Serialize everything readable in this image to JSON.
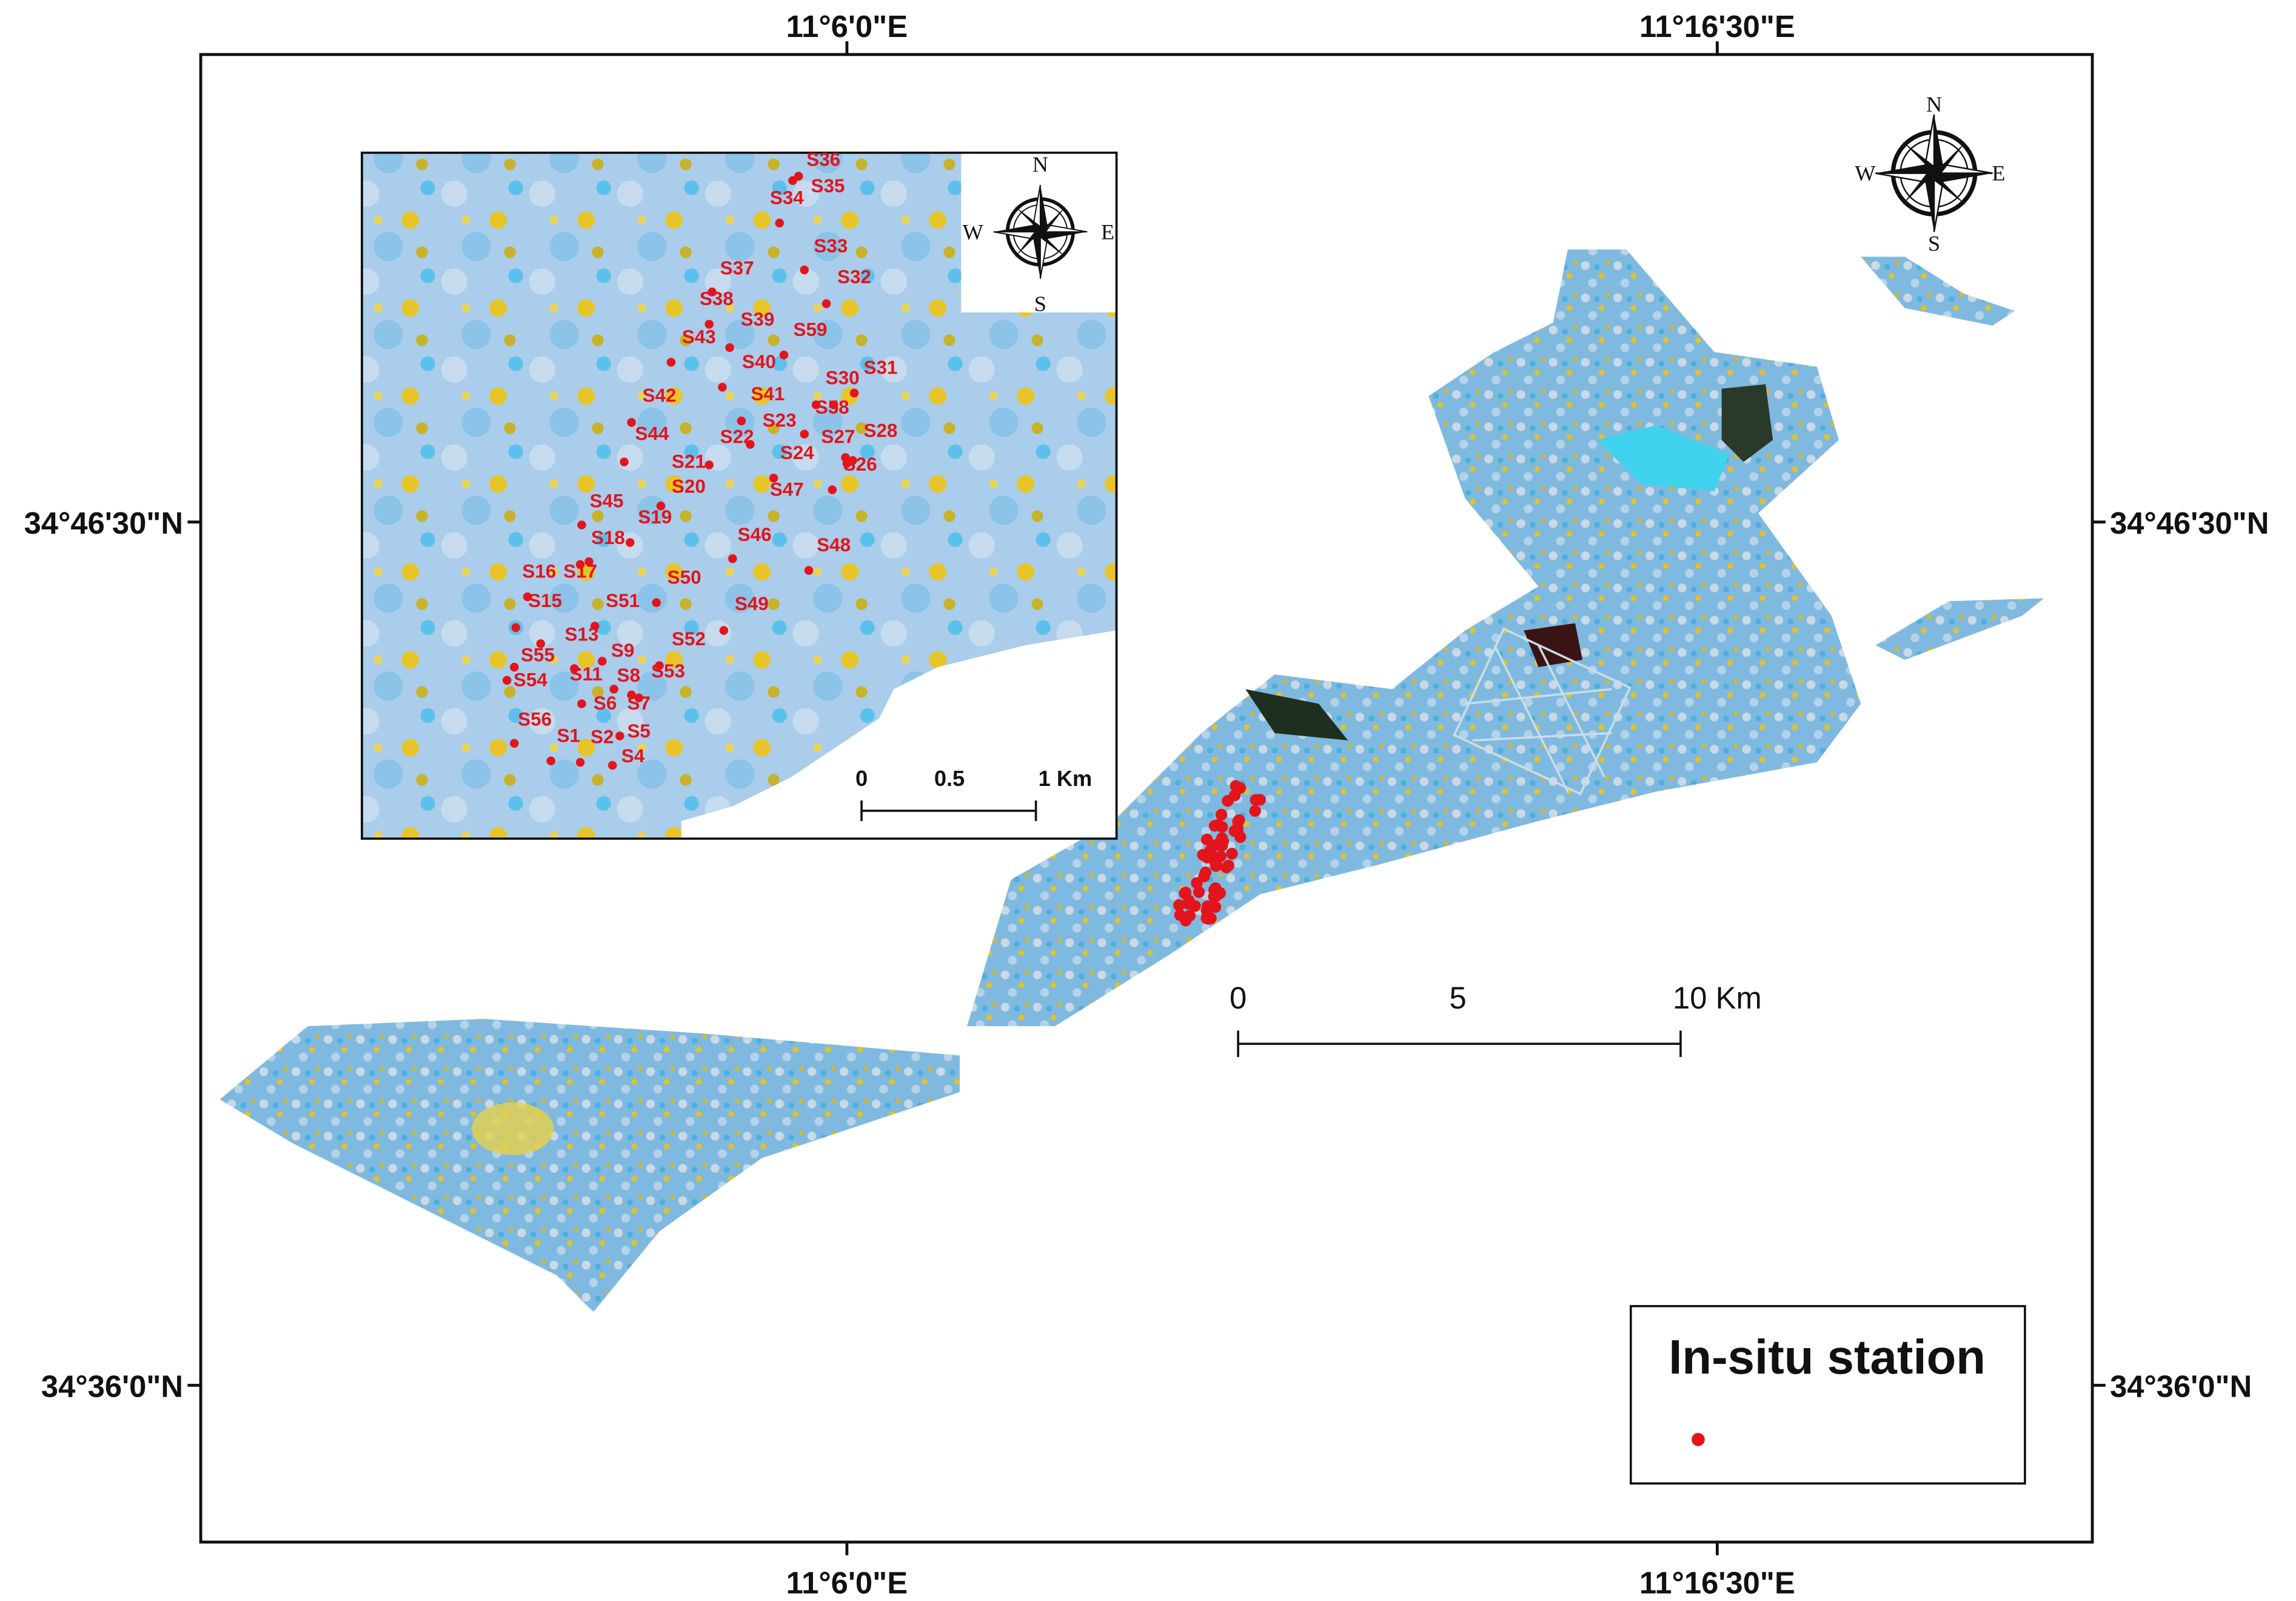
{
  "map": {
    "longitude_labels": [
      "11°6'0\"E",
      "11°16'30\"E"
    ],
    "latitude_labels": [
      "34°46'30\"N",
      "34°36'0\"N"
    ],
    "compass": {
      "n": "N",
      "e": "E",
      "s": "S",
      "w": "W"
    },
    "scale_bar": [
      "0",
      "5",
      "10 Km"
    ],
    "inset": {
      "scale_bar": [
        "0",
        "0.5",
        "1 Km"
      ],
      "stations": [
        "S36",
        "S35",
        "S34",
        "S33",
        "S32",
        "S37",
        "S38",
        "S39",
        "S59",
        "S43",
        "S40",
        "S31",
        "S30",
        "S58",
        "S41",
        "S23",
        "S42",
        "S22",
        "S27",
        "S28",
        "S44",
        "S21",
        "S24",
        "S26",
        "S20",
        "S47",
        "S45",
        "S19",
        "S18",
        "S46",
        "S48",
        "S16",
        "S17",
        "S50",
        "S15",
        "S51",
        "S49",
        "S13",
        "S52",
        "S9",
        "S55",
        "S11",
        "S8",
        "S53",
        "S54",
        "S7",
        "S6",
        "S56",
        "S5",
        "S1",
        "S2",
        "S4"
      ]
    },
    "legend": {
      "title": "In-situ station"
    }
  }
}
